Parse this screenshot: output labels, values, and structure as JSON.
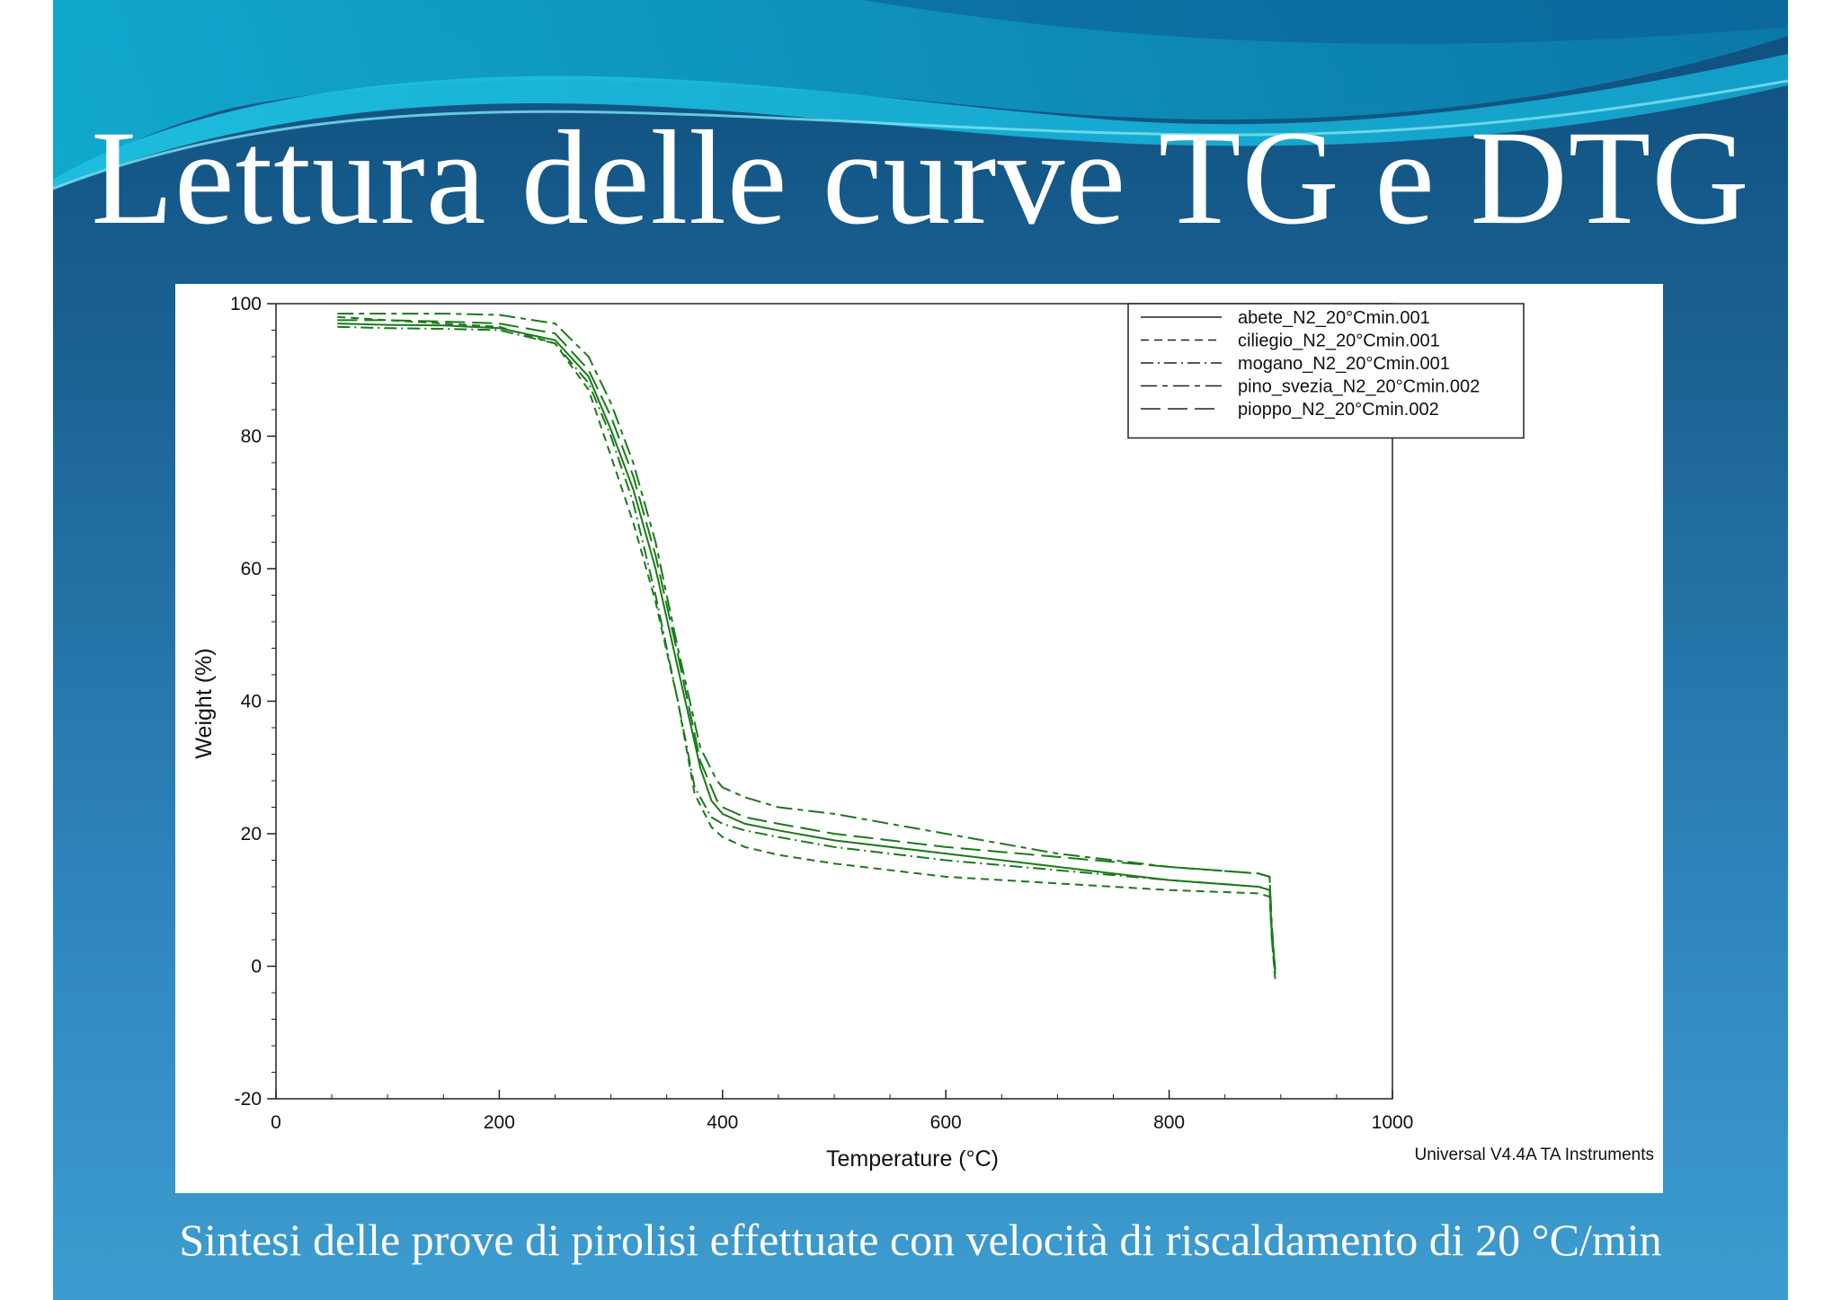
{
  "slide": {
    "title": "Lettura delle curve TG e DTG",
    "caption": "Sintesi delle prove di pirolisi effettuate con velocità di riscaldamento di 20 °C/min",
    "colors": {
      "background_top": "#0e4f7e",
      "background_bottom": "#3d9ccf",
      "title_text": "#ffffff",
      "curve_color": "#1a7a1a"
    }
  },
  "chart_data": {
    "type": "line",
    "title": "",
    "xlabel": "Temperature (°C)",
    "ylabel": "Weight (%)",
    "xlim": [
      0,
      1000
    ],
    "ylim": [
      -20,
      100
    ],
    "xticks": [
      0,
      200,
      400,
      600,
      800,
      1000
    ],
    "yticks": [
      -20,
      0,
      20,
      40,
      60,
      80,
      100
    ],
    "grid": false,
    "legend_position": "top-right",
    "footer": "Universal V4.4A TA Instruments",
    "series": [
      {
        "name": "abete_N2_20°Cmin.001",
        "dash": "solid",
        "x": [
          55,
          100,
          150,
          200,
          250,
          280,
          300,
          320,
          340,
          360,
          380,
          390,
          400,
          420,
          450,
          500,
          600,
          700,
          800,
          880,
          890,
          892,
          895
        ],
        "y": [
          97,
          96.8,
          96.7,
          96.3,
          94.5,
          89,
          81,
          72,
          60,
          45,
          30,
          25,
          23,
          21.5,
          20.5,
          19,
          17,
          15,
          13,
          12,
          11.5,
          5,
          -1
        ]
      },
      {
        "name": "ciliegio_N2_20°Cmin.001",
        "dash": "dashed",
        "x": [
          55,
          100,
          150,
          200,
          250,
          280,
          300,
          320,
          340,
          360,
          375,
          390,
          400,
          420,
          450,
          500,
          600,
          700,
          800,
          880,
          890,
          892,
          895
        ],
        "y": [
          98,
          97.5,
          97,
          96.5,
          94,
          87,
          77,
          67,
          55,
          40,
          26,
          21,
          19.5,
          18,
          16.8,
          15.5,
          13.5,
          12.5,
          11.5,
          11,
          10.5,
          4,
          -2
        ]
      },
      {
        "name": "mogano_N2_20°Cmin.001",
        "dash": "dashdot",
        "x": [
          55,
          100,
          150,
          200,
          250,
          280,
          300,
          320,
          340,
          360,
          375,
          390,
          400,
          420,
          450,
          500,
          600,
          700,
          800,
          880,
          890,
          892,
          895
        ],
        "y": [
          96.5,
          96.3,
          96.2,
          96,
          94,
          88,
          80,
          70,
          56,
          40,
          27,
          22.5,
          21.5,
          20.5,
          19.5,
          18,
          16,
          14.5,
          13,
          12,
          11.5,
          4,
          -1.5
        ]
      },
      {
        "name": "pino_svezia_N2_20°Cmin.002",
        "dash": "longdash-short",
        "x": [
          55,
          100,
          150,
          200,
          250,
          280,
          300,
          320,
          340,
          360,
          380,
          395,
          400,
          420,
          450,
          500,
          600,
          700,
          800,
          880,
          890,
          892,
          895
        ],
        "y": [
          98.5,
          98.5,
          98.5,
          98.3,
          97,
          92,
          85,
          76,
          64,
          48,
          33,
          28,
          27,
          25.5,
          24,
          23,
          20,
          17,
          15,
          14,
          13.5,
          6,
          -0.5
        ]
      },
      {
        "name": "pioppo_N2_20°Cmin.002",
        "dash": "longdash",
        "x": [
          55,
          100,
          150,
          200,
          250,
          280,
          300,
          320,
          340,
          360,
          380,
          395,
          400,
          420,
          450,
          500,
          600,
          700,
          800,
          880,
          890,
          892,
          895
        ],
        "y": [
          97.5,
          97.5,
          97.3,
          97,
          95.5,
          90,
          83,
          74,
          62,
          47,
          31,
          25,
          24,
          22.5,
          21.5,
          20,
          18,
          16.5,
          15,
          14,
          13.5,
          5,
          -0.5
        ]
      }
    ]
  }
}
